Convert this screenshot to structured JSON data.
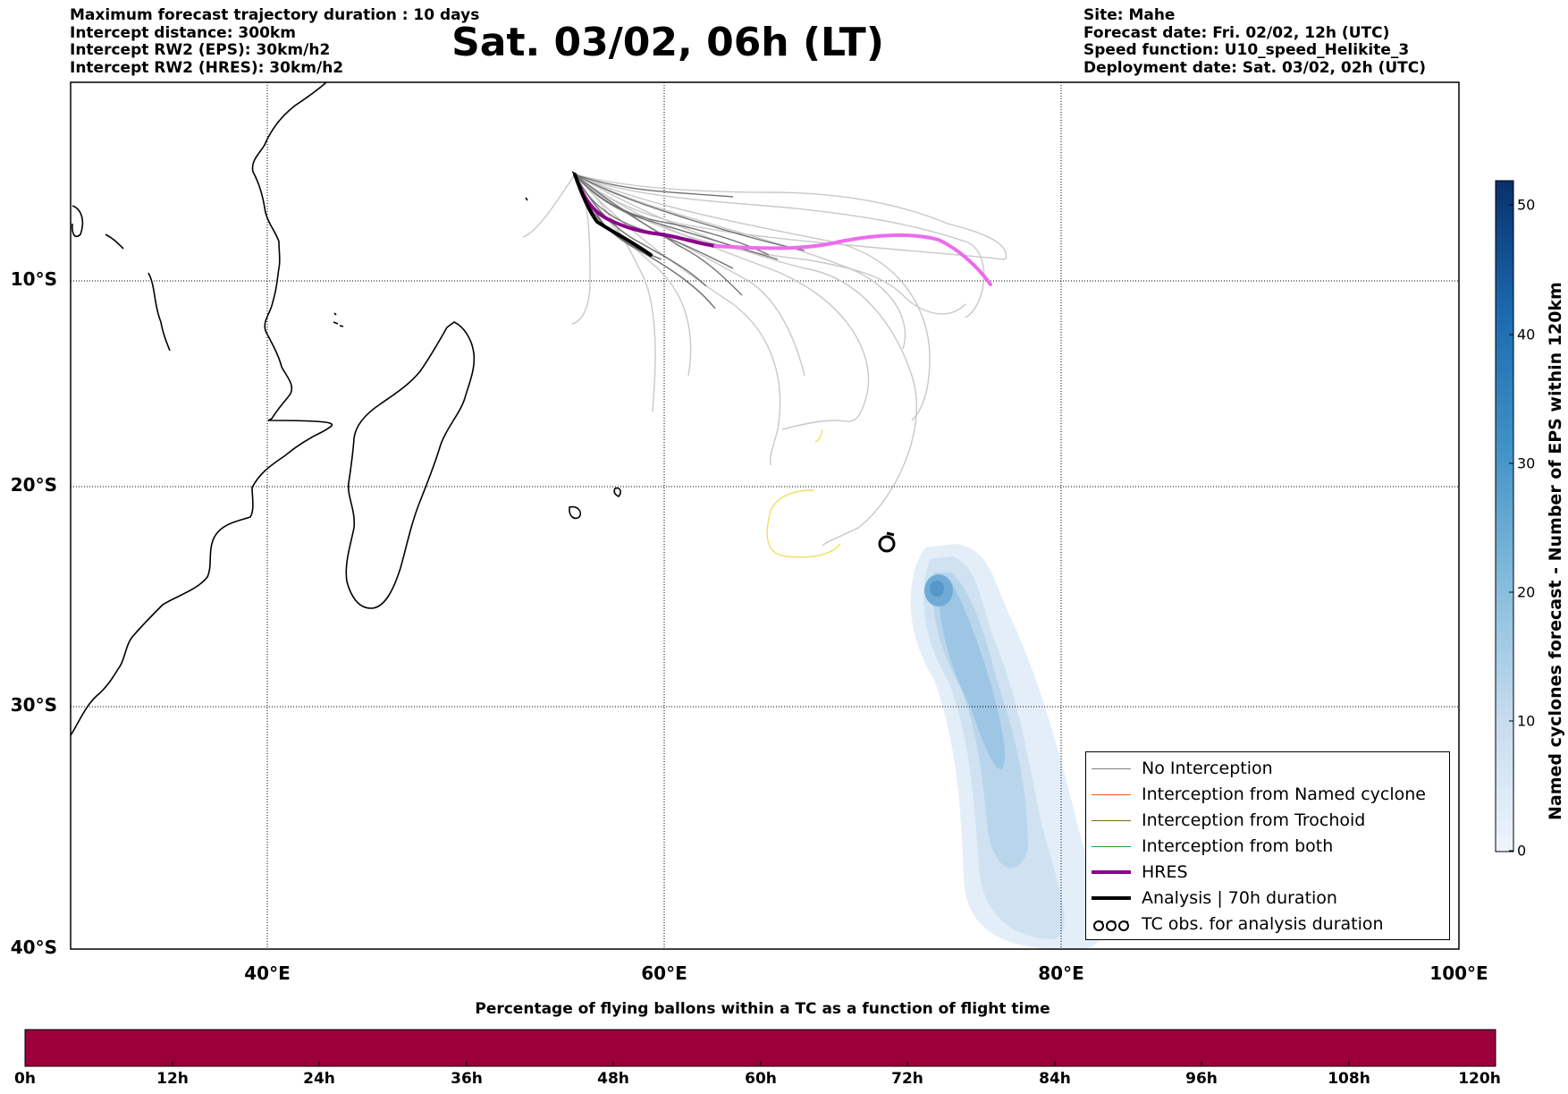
{
  "header_left": [
    "Maximum forecast trajectory duration : 10 days",
    "Intercept distance: 300km",
    "Intercept RW2 (EPS):  30km/h2",
    "Intercept RW2 (HRES): 30km/h2"
  ],
  "title": "Sat. 03/02, 06h (LT)",
  "header_right": [
    "Site: Mahe",
    "Forecast date: Fri. 02/02, 12h (UTC)",
    "Speed function: U10_speed_Helikite_3",
    "Deployment date: Sat. 03/02, 02h (UTC)"
  ],
  "map": {
    "lon_range": [
      30,
      100
    ],
    "lat_range": [
      -40,
      0
    ],
    "lat_ticks": [
      "10°S",
      "20°S",
      "30°S",
      "40°S"
    ],
    "lon_ticks": [
      "40°E",
      "60°E",
      "80°E",
      "100°E"
    ],
    "gridlines": true
  },
  "legend": {
    "placement": "lower-right",
    "entries": [
      {
        "label": "No Interception",
        "color": "#808080"
      },
      {
        "label": "Interception from Named cyclone",
        "color": "#e8591a"
      },
      {
        "label": "Interception from Trochoid",
        "color": "#7a6a10"
      },
      {
        "label": "Interception from both",
        "color": "#2a9a2a"
      },
      {
        "label": "HRES",
        "color": "#8b008b"
      },
      {
        "label": "Analysis | 70h duration",
        "color": "#000000"
      },
      {
        "label": "TC obs. for analysis duration",
        "icon": "cyclone-symbol-icon"
      }
    ]
  },
  "colorbar": {
    "label": "Named cyclones forecast - Number of EPS within 120km",
    "ticks": [
      "0",
      "10",
      "20",
      "30",
      "40",
      "50"
    ],
    "colors": [
      "#e8f1fa",
      "#b7d4ea",
      "#6aaed6",
      "#2f7ebc",
      "#08306b"
    ]
  },
  "flight_time_bar": {
    "title": "Percentage of flying ballons within a TC as a function of flight time",
    "ticks": [
      "0h",
      "12h",
      "24h",
      "36h",
      "48h",
      "60h",
      "72h",
      "84h",
      "96h",
      "108h",
      "120h"
    ],
    "color": "#9b003b"
  }
}
